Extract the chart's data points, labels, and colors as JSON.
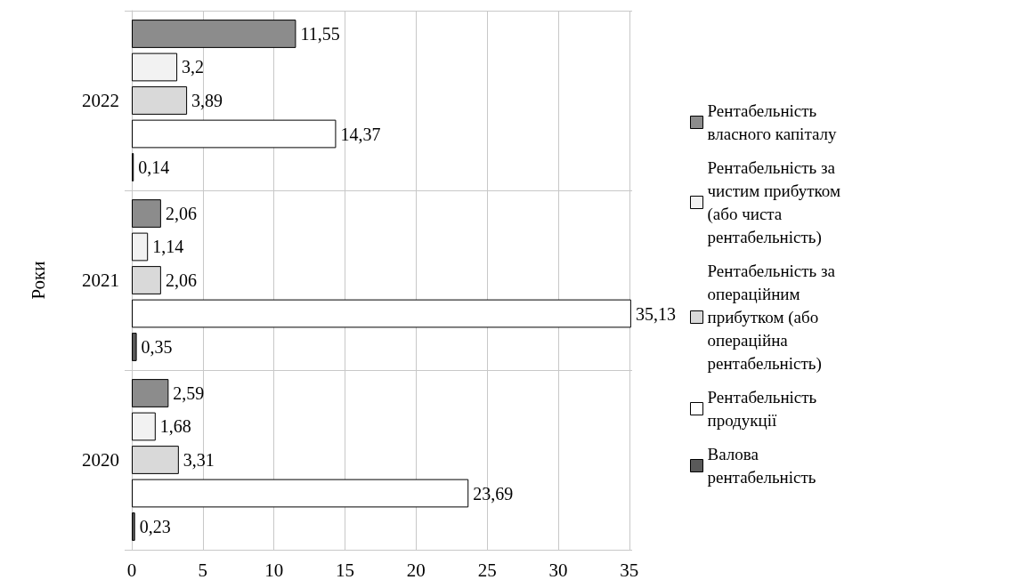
{
  "chart_data": {
    "type": "bar",
    "orientation": "horizontal",
    "ylabel": "Роки",
    "categories": [
      "2022",
      "2021",
      "2020"
    ],
    "series": [
      {
        "name": "Рентабельність власного капіталу",
        "color": "#8c8c8c",
        "values": [
          11.55,
          2.06,
          2.59
        ],
        "value_labels": [
          "11,55",
          "2,06",
          "2,59"
        ]
      },
      {
        "name": "Рентабельність за чистим прибутком (або чиста рентабельність)",
        "color": "#f2f2f2",
        "values": [
          3.2,
          1.14,
          1.68
        ],
        "value_labels": [
          "3,2",
          "1,14",
          "1,68"
        ]
      },
      {
        "name": "Рентабельність за операційним прибутком (або операційна рентабельність)",
        "color": "#d9d9d9",
        "values": [
          3.89,
          2.06,
          3.31
        ],
        "value_labels": [
          "3,89",
          "2,06",
          "3,31"
        ]
      },
      {
        "name": "Рентабельність продукції",
        "color": "#ffffff",
        "values": [
          14.37,
          35.13,
          23.69
        ],
        "value_labels": [
          "14,37",
          "35,13",
          "23,69"
        ]
      },
      {
        "name": "Валова рентабельність",
        "color": "#595959",
        "values": [
          0.14,
          0.35,
          0.23
        ],
        "value_labels": [
          "0,14",
          "0,35",
          "0,23"
        ]
      }
    ],
    "xlim": [
      0,
      35.2
    ],
    "xticks": [
      0,
      5,
      10,
      15,
      20,
      25,
      30,
      35
    ],
    "grid": true,
    "legend": "right"
  }
}
